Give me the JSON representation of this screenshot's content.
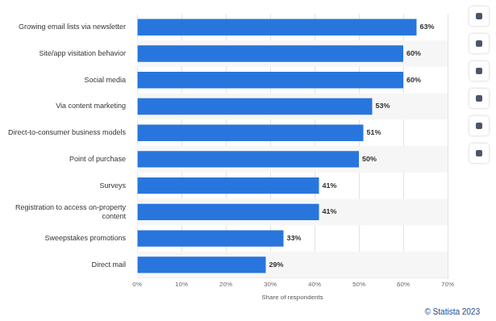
{
  "chart_data": {
    "type": "bar",
    "orientation": "horizontal",
    "categories": [
      "Growing email lists via newsletter",
      "Site/app visitation behavior",
      "Social media",
      "Via content marketing",
      "Direct-to-consumer business models",
      "Point of purchase",
      "Surveys",
      "Registration to access on-property content",
      "Sweepstakes promotions",
      "Direct mail"
    ],
    "values": [
      63,
      60,
      60,
      53,
      51,
      50,
      41,
      41,
      33,
      29
    ],
    "value_labels": [
      "63%",
      "60%",
      "60%",
      "53%",
      "51%",
      "50%",
      "41%",
      "41%",
      "33%",
      "29%"
    ],
    "color": "#2876dd",
    "xlim": [
      0,
      70
    ],
    "xticks": [
      {
        "value": 0,
        "label": "0%"
      },
      {
        "value": 10,
        "label": "10%"
      },
      {
        "value": 20,
        "label": "20%"
      },
      {
        "value": 30,
        "label": "30%"
      },
      {
        "value": 40,
        "label": "40%"
      },
      {
        "value": 50,
        "label": "50%"
      },
      {
        "value": 60,
        "label": "60%"
      },
      {
        "value": 70,
        "label": "70%"
      }
    ],
    "x_label": "Share of respondents",
    "grid": true,
    "data_labels": true,
    "annotations": [
      "© Statista 2023"
    ]
  }
}
